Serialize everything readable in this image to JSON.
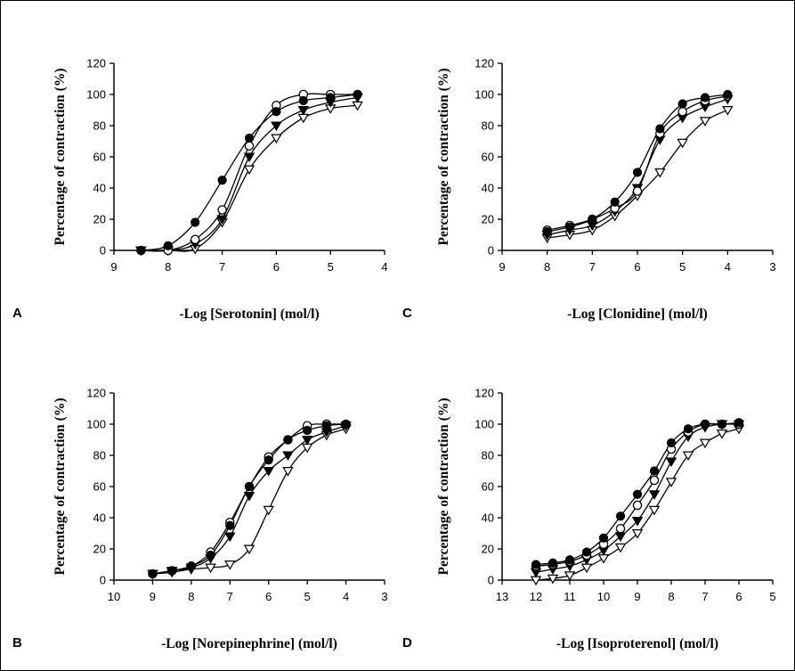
{
  "chart_data": [
    {
      "panel": "A",
      "type": "line",
      "xlabel": "-Log [Serotonin] (mol/l)",
      "ylabel": "Percentage of contraction (%)",
      "x_ticks": [
        9,
        8,
        7,
        6,
        5,
        4
      ],
      "xlim": [
        9,
        4
      ],
      "y_ticks": [
        0,
        20,
        40,
        60,
        80,
        100,
        120
      ],
      "ylim": [
        0,
        120
      ],
      "x": [
        8.5,
        8.0,
        7.5,
        7.0,
        6.5,
        6.0,
        5.5,
        5.0,
        4.5
      ],
      "series": [
        {
          "marker": "filled-circle",
          "values": [
            0,
            3,
            18,
            45,
            72,
            89,
            96,
            98,
            100
          ]
        },
        {
          "marker": "open-circle",
          "values": [
            0,
            0,
            7,
            26,
            67,
            93,
            100,
            100,
            100
          ]
        },
        {
          "marker": "filled-triangle",
          "values": [
            0,
            0,
            4,
            20,
            60,
            80,
            90,
            95,
            98
          ]
        },
        {
          "marker": "open-triangle",
          "values": [
            0,
            0,
            1,
            18,
            52,
            72,
            85,
            91,
            93
          ]
        }
      ]
    },
    {
      "panel": "C",
      "type": "line",
      "xlabel": "-Log [Clonidine] (mol/l)",
      "ylabel": "Percentage of contraction (%)",
      "x_ticks": [
        9,
        8,
        7,
        6,
        5,
        4,
        3
      ],
      "xlim": [
        9,
        3
      ],
      "y_ticks": [
        0,
        20,
        40,
        60,
        80,
        100,
        120
      ],
      "ylim": [
        0,
        120
      ],
      "x": [
        8.0,
        7.5,
        7.0,
        6.5,
        6.0,
        5.5,
        5.0,
        4.5,
        4.0
      ],
      "series": [
        {
          "marker": "filled-circle",
          "values": [
            12,
            15,
            20,
            31,
            50,
            78,
            94,
            98,
            100
          ]
        },
        {
          "marker": "open-circle",
          "values": [
            13,
            16,
            20,
            27,
            38,
            75,
            89,
            96,
            99
          ]
        },
        {
          "marker": "filled-triangle",
          "values": [
            10,
            13,
            16,
            25,
            40,
            71,
            85,
            92,
            97
          ]
        },
        {
          "marker": "open-triangle",
          "values": [
            8,
            10,
            13,
            22,
            35,
            50,
            69,
            83,
            90
          ]
        }
      ]
    },
    {
      "panel": "B",
      "type": "line",
      "xlabel": "-Log [Norepinephrine] (mol/l)",
      "ylabel": "Percentage of contraction (%)",
      "x_ticks": [
        10,
        9,
        8,
        7,
        6,
        5,
        4,
        3
      ],
      "xlim": [
        10,
        3
      ],
      "y_ticks": [
        0,
        20,
        40,
        60,
        80,
        100,
        120
      ],
      "ylim": [
        0,
        120
      ],
      "x": [
        9.0,
        8.5,
        8.0,
        7.5,
        7.0,
        6.5,
        6.0,
        5.5,
        5.0,
        4.5,
        4.0
      ],
      "series": [
        {
          "marker": "filled-circle",
          "values": [
            4,
            6,
            9,
            16,
            35,
            60,
            77,
            90,
            96,
            99,
            100
          ]
        },
        {
          "marker": "open-circle",
          "values": [
            4,
            6,
            9,
            18,
            37,
            60,
            79,
            90,
            99,
            100,
            100
          ]
        },
        {
          "marker": "filled-triangle",
          "values": [
            4,
            6,
            8,
            14,
            28,
            54,
            70,
            80,
            90,
            95,
            99
          ]
        },
        {
          "marker": "open-triangle",
          "values": [
            4,
            5,
            7,
            8,
            10,
            20,
            45,
            70,
            85,
            93,
            97
          ]
        }
      ]
    },
    {
      "panel": "D",
      "type": "line",
      "xlabel": "-Log [Isoproterenol] (mol/l)",
      "ylabel": "Percentage of contraction (%)",
      "x_ticks": [
        13,
        12,
        11,
        10,
        9,
        8,
        7,
        6,
        5
      ],
      "xlim": [
        13,
        5
      ],
      "y_ticks": [
        0,
        20,
        40,
        60,
        80,
        100,
        120
      ],
      "ylim": [
        0,
        120
      ],
      "x": [
        12.0,
        11.5,
        11.0,
        10.5,
        10.0,
        9.5,
        9.0,
        8.5,
        8.0,
        7.5,
        7.0,
        6.5,
        6.0
      ],
      "series": [
        {
          "marker": "filled-circle",
          "values": [
            10,
            11,
            13,
            18,
            27,
            41,
            55,
            70,
            88,
            97,
            100,
            100,
            101
          ]
        },
        {
          "marker": "open-circle",
          "values": [
            9,
            10,
            12,
            16,
            23,
            33,
            48,
            64,
            84,
            95,
            100,
            100,
            100
          ]
        },
        {
          "marker": "filled-triangle",
          "values": [
            5,
            7,
            9,
            13,
            19,
            28,
            38,
            55,
            76,
            92,
            98,
            100,
            100
          ]
        },
        {
          "marker": "open-triangle",
          "values": [
            0,
            1,
            3,
            8,
            14,
            21,
            30,
            45,
            63,
            80,
            88,
            94,
            97
          ]
        }
      ]
    }
  ]
}
